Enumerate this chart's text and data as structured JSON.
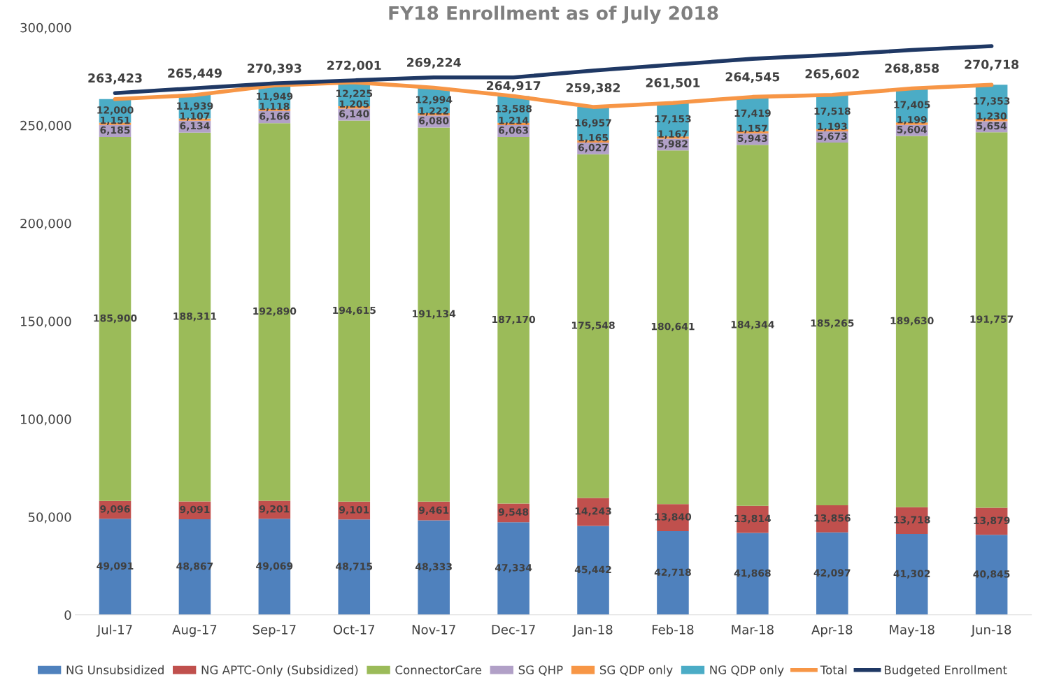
{
  "chart_data": {
    "type": "bar",
    "stacked": true,
    "title": "FY18 Enrollment as of July 2018",
    "categories": [
      "Jul-17",
      "Aug-17",
      "Sep-17",
      "Oct-17",
      "Nov-17",
      "Dec-17",
      "Jan-18",
      "Feb-18",
      "Mar-18",
      "Apr-18",
      "May-18",
      "Jun-18"
    ],
    "series": [
      {
        "name": "NG Unsubsidized",
        "color": "#4f81bd",
        "values": [
          49091,
          48867,
          49069,
          48715,
          48333,
          47334,
          45442,
          42718,
          41868,
          42097,
          41302,
          40845
        ],
        "value_labels": [
          "49,091",
          "48,867",
          "49,069",
          "48,715",
          "48,333",
          "47,334",
          "45,442",
          "42,718",
          "41,868",
          "42,097",
          "41,302",
          "40,845"
        ]
      },
      {
        "name": "NG APTC-Only (Subsidized)",
        "color": "#c0504d",
        "values": [
          9096,
          9091,
          9201,
          9101,
          9461,
          9548,
          14243,
          13840,
          13814,
          13856,
          13718,
          13879
        ],
        "value_labels": [
          "9,096",
          "9,091",
          "9,201",
          "9,101",
          "9,461",
          "9,548",
          "14,243",
          "13,840",
          "13,814",
          "13,856",
          "13,718",
          "13,879"
        ]
      },
      {
        "name": "ConnectorCare",
        "color": "#9bbb59",
        "values": [
          185900,
          188311,
          192890,
          194615,
          191134,
          187170,
          175548,
          180641,
          184344,
          185265,
          189630,
          191757
        ],
        "value_labels": [
          "185,900",
          "188,311",
          "192,890",
          "194,615",
          "191,134",
          "187,170",
          "175,548",
          "180,641",
          "184,344",
          "185,265",
          "189,630",
          "191,757"
        ]
      },
      {
        "name": "SG QHP",
        "color": "#b1a0c7",
        "values": [
          6185,
          6134,
          6166,
          6140,
          6080,
          6063,
          6027,
          5982,
          5943,
          5673,
          5604,
          5654
        ],
        "value_labels": [
          "6,185",
          "6,134",
          "6,166",
          "6,140",
          "6,080",
          "6,063",
          "6,027",
          "5,982",
          "5,943",
          "5,673",
          "5,604",
          "5,654"
        ]
      },
      {
        "name": "SG QDP only",
        "color": "#f79646",
        "values": [
          1151,
          1107,
          1118,
          1205,
          1222,
          1214,
          1165,
          1167,
          1157,
          1193,
          1199,
          1230
        ],
        "value_labels": [
          "1,151",
          "1,107",
          "1,118",
          "1,205",
          "1,222",
          "1,214",
          "1,165",
          "1,167",
          "1,157",
          "1,193",
          "1,199",
          "1,230"
        ]
      },
      {
        "name": "NG QDP only",
        "color": "#4bacc6",
        "values": [
          12000,
          11939,
          11949,
          12225,
          12994,
          13588,
          16957,
          17153,
          17419,
          17518,
          17405,
          17353
        ],
        "value_labels": [
          "12,000",
          "11,939",
          "11,949",
          "12,225",
          "12,994",
          "13,588",
          "16,957",
          "17,153",
          "17,419",
          "17,518",
          "17,405",
          "17,353"
        ]
      },
      {
        "name": "Total",
        "type": "line",
        "color": "#f79646",
        "values": [
          263423,
          265449,
          270393,
          272001,
          269224,
          264917,
          259382,
          261501,
          264545,
          265602,
          268858,
          270718
        ],
        "value_labels": [
          "263,423",
          "265,449",
          "270,393",
          "272,001",
          "269,224",
          "264,917",
          "259,382",
          "261,501",
          "264,545",
          "265,602",
          "268,858",
          "270,718"
        ]
      },
      {
        "name": "Budgeted Enrollment",
        "type": "line",
        "color": "#1f3864",
        "values": [
          266500,
          269000,
          271500,
          273000,
          274500,
          274500,
          278000,
          281000,
          284000,
          286000,
          288500,
          290500
        ]
      }
    ],
    "ylim": [
      0,
      300000
    ],
    "yticks": [
      {
        "value": 0,
        "label": "0"
      },
      {
        "value": 50000,
        "label": "50,000"
      },
      {
        "value": 100000,
        "label": "100,000"
      },
      {
        "value": 150000,
        "label": "150,000"
      },
      {
        "value": 200000,
        "label": "200,000"
      },
      {
        "value": 250000,
        "label": "250,000"
      },
      {
        "value": 300000,
        "label": "300,000"
      }
    ],
    "legend": "bottom"
  }
}
